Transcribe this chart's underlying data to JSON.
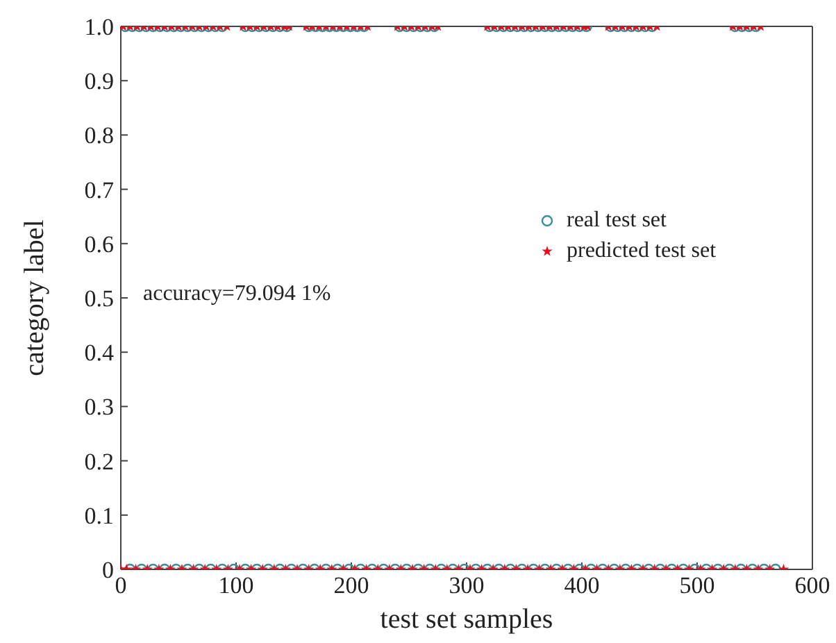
{
  "chart_data": {
    "type": "scatter",
    "xlabel": "test set samples",
    "ylabel": "category label",
    "annotations": [
      "accuracy=79.094 1%"
    ],
    "xlim": [
      0,
      600
    ],
    "xticks": [
      0,
      100,
      200,
      300,
      400,
      500,
      600
    ],
    "ylim": [
      0,
      1
    ],
    "yticks": [
      0,
      0.1,
      0.2,
      0.3,
      0.4,
      0.5,
      0.6,
      0.7,
      0.8,
      0.9,
      {
        "value": 1,
        "label": "1.0"
      }
    ],
    "grid": false,
    "legend": "right",
    "series": [
      {
        "name": "real test set",
        "color": "#3a8d9c",
        "marker": "circle",
        "x": [
          4,
          10,
          16,
          22,
          28,
          34,
          40,
          46,
          52,
          58,
          64,
          70,
          76,
          82,
          88,
          108,
          114,
          120,
          126,
          132,
          138,
          144,
          163,
          169,
          175,
          181,
          187,
          193,
          199,
          205,
          211,
          242,
          248,
          254,
          260,
          266,
          272,
          320,
          326,
          332,
          338,
          344,
          350,
          356,
          362,
          368,
          374,
          380,
          386,
          392,
          398,
          404,
          425,
          431,
          437,
          443,
          449,
          455,
          461,
          533,
          539,
          545,
          551,
          8,
          18,
          28,
          38,
          48,
          58,
          68,
          78,
          88,
          98,
          108,
          118,
          128,
          138,
          148,
          158,
          168,
          178,
          188,
          198,
          208,
          218,
          228,
          238,
          248,
          258,
          268,
          278,
          288,
          298,
          308,
          318,
          328,
          338,
          348,
          358,
          368,
          378,
          388,
          398,
          408,
          418,
          428,
          438,
          448,
          458,
          468,
          478,
          488,
          498,
          508,
          518,
          528,
          538,
          548,
          558,
          568
        ],
        "values": [
          1,
          1,
          1,
          1,
          1,
          1,
          1,
          1,
          1,
          1,
          1,
          1,
          1,
          1,
          1,
          1,
          1,
          1,
          1,
          1,
          1,
          1,
          1,
          1,
          1,
          1,
          1,
          1,
          1,
          1,
          1,
          1,
          1,
          1,
          1,
          1,
          1,
          1,
          1,
          1,
          1,
          1,
          1,
          1,
          1,
          1,
          1,
          1,
          1,
          1,
          1,
          1,
          1,
          1,
          1,
          1,
          1,
          1,
          1,
          1,
          1,
          1,
          1,
          0,
          0,
          0,
          0,
          0,
          0,
          0,
          0,
          0,
          0,
          0,
          0,
          0,
          0,
          0,
          0,
          0,
          0,
          0,
          0,
          0,
          0,
          0,
          0,
          0,
          0,
          0,
          0,
          0,
          0,
          0,
          0,
          0,
          0,
          0,
          0,
          0,
          0,
          0,
          0,
          0,
          0,
          0,
          0,
          0,
          0,
          0,
          0,
          0,
          0,
          0,
          0,
          0,
          0,
          0,
          0,
          0
        ]
      },
      {
        "name": "predicted test set",
        "color": "#e3101e",
        "marker": "star",
        "x": [
          2,
          8,
          14,
          20,
          26,
          32,
          38,
          44,
          50,
          56,
          62,
          68,
          74,
          80,
          86,
          92,
          106,
          112,
          118,
          124,
          130,
          136,
          142,
          146,
          161,
          166,
          172,
          178,
          184,
          190,
          196,
          202,
          208,
          214,
          240,
          246,
          252,
          258,
          264,
          270,
          275,
          318,
          324,
          330,
          336,
          342,
          348,
          354,
          360,
          366,
          372,
          378,
          384,
          390,
          396,
          402,
          405,
          423,
          429,
          435,
          441,
          447,
          453,
          459,
          465,
          531,
          537,
          543,
          549,
          555,
          0,
          5,
          13,
          23,
          33,
          43,
          53,
          63,
          73,
          83,
          93,
          103,
          113,
          123,
          133,
          143,
          153,
          163,
          173,
          183,
          193,
          203,
          213,
          223,
          233,
          243,
          253,
          263,
          273,
          283,
          293,
          303,
          313,
          323,
          333,
          343,
          353,
          363,
          373,
          383,
          393,
          403,
          413,
          423,
          433,
          443,
          453,
          463,
          473,
          483,
          493,
          503,
          513,
          523,
          533,
          543,
          553,
          563,
          575
        ],
        "values": [
          1,
          1,
          1,
          1,
          1,
          1,
          1,
          1,
          1,
          1,
          1,
          1,
          1,
          1,
          1,
          1,
          1,
          1,
          1,
          1,
          1,
          1,
          1,
          1,
          1,
          1,
          1,
          1,
          1,
          1,
          1,
          1,
          1,
          1,
          1,
          1,
          1,
          1,
          1,
          1,
          1,
          1,
          1,
          1,
          1,
          1,
          1,
          1,
          1,
          1,
          1,
          1,
          1,
          1,
          1,
          1,
          1,
          1,
          1,
          1,
          1,
          1,
          1,
          1,
          1,
          1,
          1,
          1,
          1,
          1,
          0,
          0,
          0,
          0,
          0,
          0,
          0,
          0,
          0,
          0,
          0,
          0,
          0,
          0,
          0,
          0,
          0,
          0,
          0,
          0,
          0,
          0,
          0,
          0,
          0,
          0,
          0,
          0,
          0,
          0,
          0,
          0,
          0,
          0,
          0,
          0,
          0,
          0,
          0,
          0,
          0,
          0,
          0,
          0,
          0,
          0,
          0,
          0,
          0,
          0,
          0,
          0,
          0,
          0,
          0,
          0,
          0,
          0,
          0
        ]
      }
    ]
  }
}
